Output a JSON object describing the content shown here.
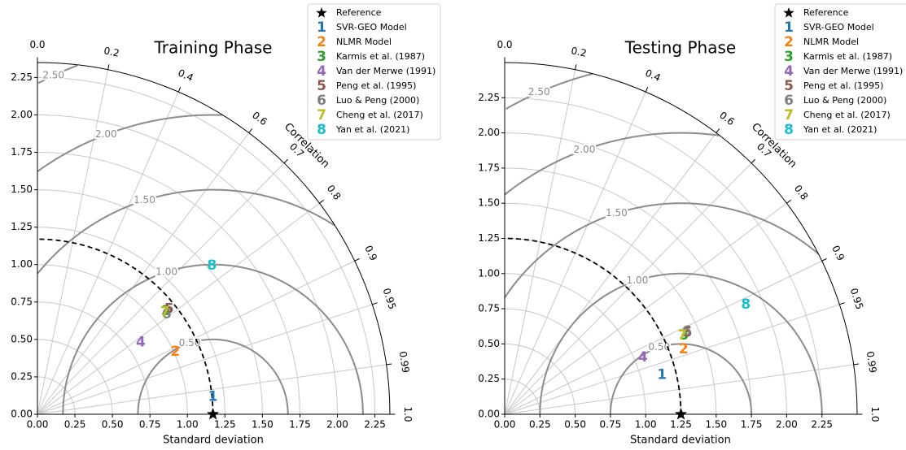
{
  "chart_data": [
    {
      "type": "taylor",
      "title": "Training Phase",
      "xlabel": "Standard deviation",
      "corr_label": "Correlation",
      "rlim": [
        0,
        2.35
      ],
      "xticks": [
        {
          "value": 0,
          "label": "0.00"
        },
        0.25,
        {
          "value": 0.5,
          "label": "0.50"
        },
        0.75,
        {
          "value": 1,
          "label": "1.00"
        },
        1.25,
        {
          "value": 1.5,
          "label": "1.50"
        },
        1.75,
        {
          "value": 2,
          "label": "2.00"
        },
        2.25
      ],
      "yticks": [
        {
          "value": 0,
          "label": "0.00"
        },
        0.25,
        {
          "value": 0.5,
          "label": "0.50"
        },
        0.75,
        {
          "value": 1,
          "label": "1.00"
        },
        1.25,
        {
          "value": 1.5,
          "label": "1.50"
        },
        1.75,
        {
          "value": 2,
          "label": "2.00"
        },
        2.25
      ],
      "corr_ticks": [
        {
          "value": 0,
          "label": "0.0"
        },
        0.2,
        0.4,
        0.6,
        0.7,
        0.8,
        0.9,
        0.95,
        0.99,
        {
          "value": 1,
          "label": "1.0"
        }
      ],
      "rms_levels": [
        {
          "value": 0.5,
          "label": "0.50"
        },
        {
          "value": 1,
          "label": "1.00"
        },
        {
          "value": 1.5,
          "label": "1.50"
        },
        {
          "value": 2,
          "label": "2.00"
        },
        {
          "value": 2.5,
          "label": "2.50"
        }
      ],
      "reference": {
        "name": "Reference",
        "std": 1.17,
        "color": "#000000"
      },
      "series": [
        {
          "name": "SVR-GEO Model",
          "marker": "1",
          "color": "#1f77b4",
          "std": 1.176,
          "corr": 0.995
        },
        {
          "name": "NLMR Model",
          "marker": "2",
          "color": "#ff7f0e",
          "std": 1.01,
          "corr": 0.91
        },
        {
          "name": "Karmis et al. (1987)",
          "marker": "3",
          "color": "#2ca02c",
          "std": 1.1,
          "corr": 0.78
        },
        {
          "name": "Van der Merwe (1991)",
          "marker": "4",
          "color": "#9467bd",
          "std": 0.84,
          "corr": 0.82
        },
        {
          "name": "Peng et al. (1995)",
          "marker": "5",
          "color": "#8c564b",
          "std": 1.125,
          "corr": 0.78
        },
        {
          "name": "Luo & Peng (2000)",
          "marker": "6",
          "color": "#7f7f7f",
          "std": 1.09,
          "corr": 0.79
        },
        {
          "name": "Cheng et al. (2017)",
          "marker": "7",
          "color": "#bcbd22",
          "std": 1.09,
          "corr": 0.78
        },
        {
          "name": "Yan et al. (2021)",
          "marker": "8",
          "color": "#17becf",
          "std": 1.53,
          "corr": 0.76
        }
      ]
    },
    {
      "type": "taylor",
      "title": "Testing Phase",
      "xlabel": "Standard deviation",
      "corr_label": "Correlation",
      "rlim": [
        0,
        2.5
      ],
      "xticks": [
        {
          "value": 0,
          "label": "0.00"
        },
        0.25,
        {
          "value": 0.5,
          "label": "0.50"
        },
        0.75,
        {
          "value": 1,
          "label": "1.00"
        },
        1.25,
        {
          "value": 1.5,
          "label": "1.50"
        },
        1.75,
        {
          "value": 2,
          "label": "2.00"
        },
        2.25
      ],
      "yticks": [
        {
          "value": 0,
          "label": "0.00"
        },
        0.25,
        {
          "value": 0.5,
          "label": "0.50"
        },
        0.75,
        {
          "value": 1,
          "label": "1.00"
        },
        1.25,
        {
          "value": 1.5,
          "label": "1.50"
        },
        1.75,
        {
          "value": 2,
          "label": "2.00"
        },
        2.25
      ],
      "corr_ticks": [
        {
          "value": 0,
          "label": "0.0"
        },
        0.2,
        0.4,
        0.6,
        0.7,
        0.8,
        0.9,
        0.95,
        0.99,
        {
          "value": 1,
          "label": "1.0"
        }
      ],
      "rms_levels": [
        {
          "value": 0.5,
          "label": "0.50"
        },
        {
          "value": 1,
          "label": "1.00"
        },
        {
          "value": 1.5,
          "label": "1.50"
        },
        {
          "value": 2,
          "label": "2.00"
        },
        {
          "value": 2.5,
          "label": "2.50"
        }
      ],
      "reference": {
        "name": "Reference",
        "std": 1.25,
        "color": "#000000"
      },
      "series": [
        {
          "name": "SVR-GEO Model",
          "marker": "1",
          "color": "#1f77b4",
          "std": 1.15,
          "corr": 0.97
        },
        {
          "name": "NLMR Model",
          "marker": "2",
          "color": "#ff7f0e",
          "std": 1.35,
          "corr": 0.94
        },
        {
          "name": "Karmis et al. (1987)",
          "marker": "3",
          "color": "#2ca02c",
          "std": 1.39,
          "corr": 0.915
        },
        {
          "name": "Van der Merwe (1991)",
          "marker": "4",
          "color": "#9467bd",
          "std": 1.06,
          "corr": 0.925
        },
        {
          "name": "Peng et al. (1995)",
          "marker": "5",
          "color": "#8c564b",
          "std": 1.42,
          "corr": 0.913
        },
        {
          "name": "Luo & Peng (2000)",
          "marker": "6",
          "color": "#7f7f7f",
          "std": 1.42,
          "corr": 0.91
        },
        {
          "name": "Cheng et al. (2017)",
          "marker": "7",
          "color": "#bcbd22",
          "std": 1.38,
          "corr": 0.914
        },
        {
          "name": "Yan et al. (2021)",
          "marker": "8",
          "color": "#17becf",
          "std": 1.88,
          "corr": 0.91
        }
      ]
    }
  ]
}
